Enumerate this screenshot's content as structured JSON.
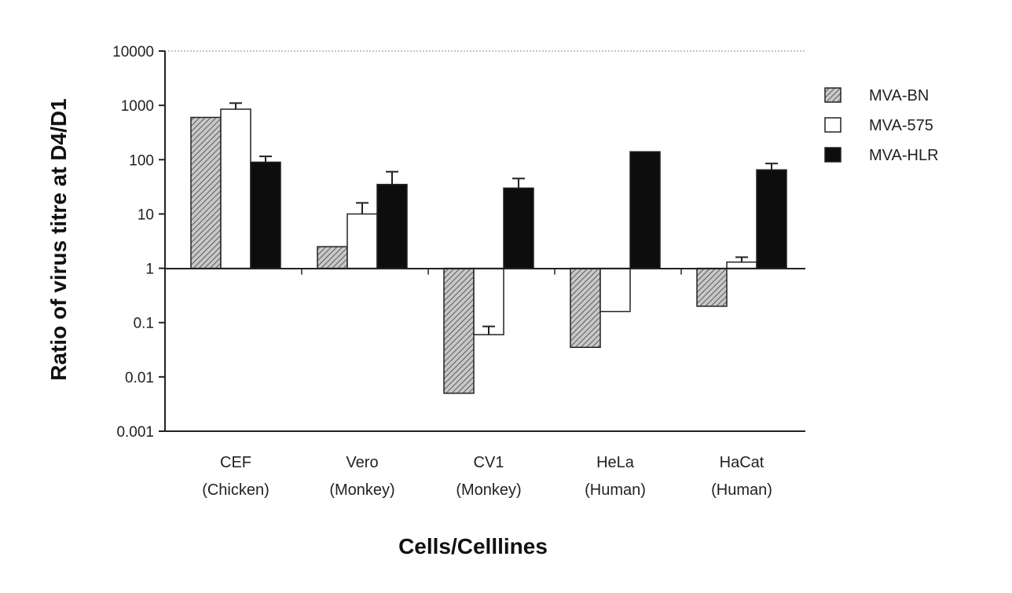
{
  "chart_data": {
    "type": "bar",
    "scale": "log",
    "baseline": 1,
    "ylim": [
      0.001,
      10000
    ],
    "yticks": [
      "10000",
      "1000",
      "100",
      "10",
      "1",
      "0.1",
      "0.01",
      "0.001"
    ],
    "ytick_values": [
      10000,
      1000,
      100,
      10,
      1,
      0.1,
      0.01,
      0.001
    ],
    "ylabel": "Ratio of virus titre at D4/D1",
    "xlabel": "Cells/Celllines",
    "categories": [
      {
        "line1": "CEF",
        "line2": "(Chicken)"
      },
      {
        "line1": "Vero",
        "line2": "(Monkey)"
      },
      {
        "line1": "CV1",
        "line2": "(Monkey)"
      },
      {
        "line1": "HeLa",
        "line2": "(Human)"
      },
      {
        "line1": "HaCat",
        "line2": "(Human)"
      }
    ],
    "series": [
      {
        "name": "MVA-BN",
        "style": "hatched",
        "values": [
          600,
          2.5,
          0.005,
          0.035,
          0.2
        ],
        "errors": [
          0,
          0,
          0,
          0,
          0
        ]
      },
      {
        "name": "MVA-575",
        "style": "white",
        "values": [
          850,
          10,
          0.06,
          0.16,
          1.3
        ],
        "errors": [
          1100,
          16,
          0.085,
          0,
          1.6
        ]
      },
      {
        "name": "MVA-HLR",
        "style": "black",
        "values": [
          90,
          35,
          30,
          140,
          65
        ],
        "errors": [
          115,
          60,
          45,
          0,
          85
        ]
      }
    ],
    "grid": false,
    "legend_position": "right"
  },
  "colors": {
    "axis": "#222222",
    "bar_dark": "#0d0d0d",
    "bar_white": "#ffffff",
    "hatch": "#6a6a6a"
  }
}
